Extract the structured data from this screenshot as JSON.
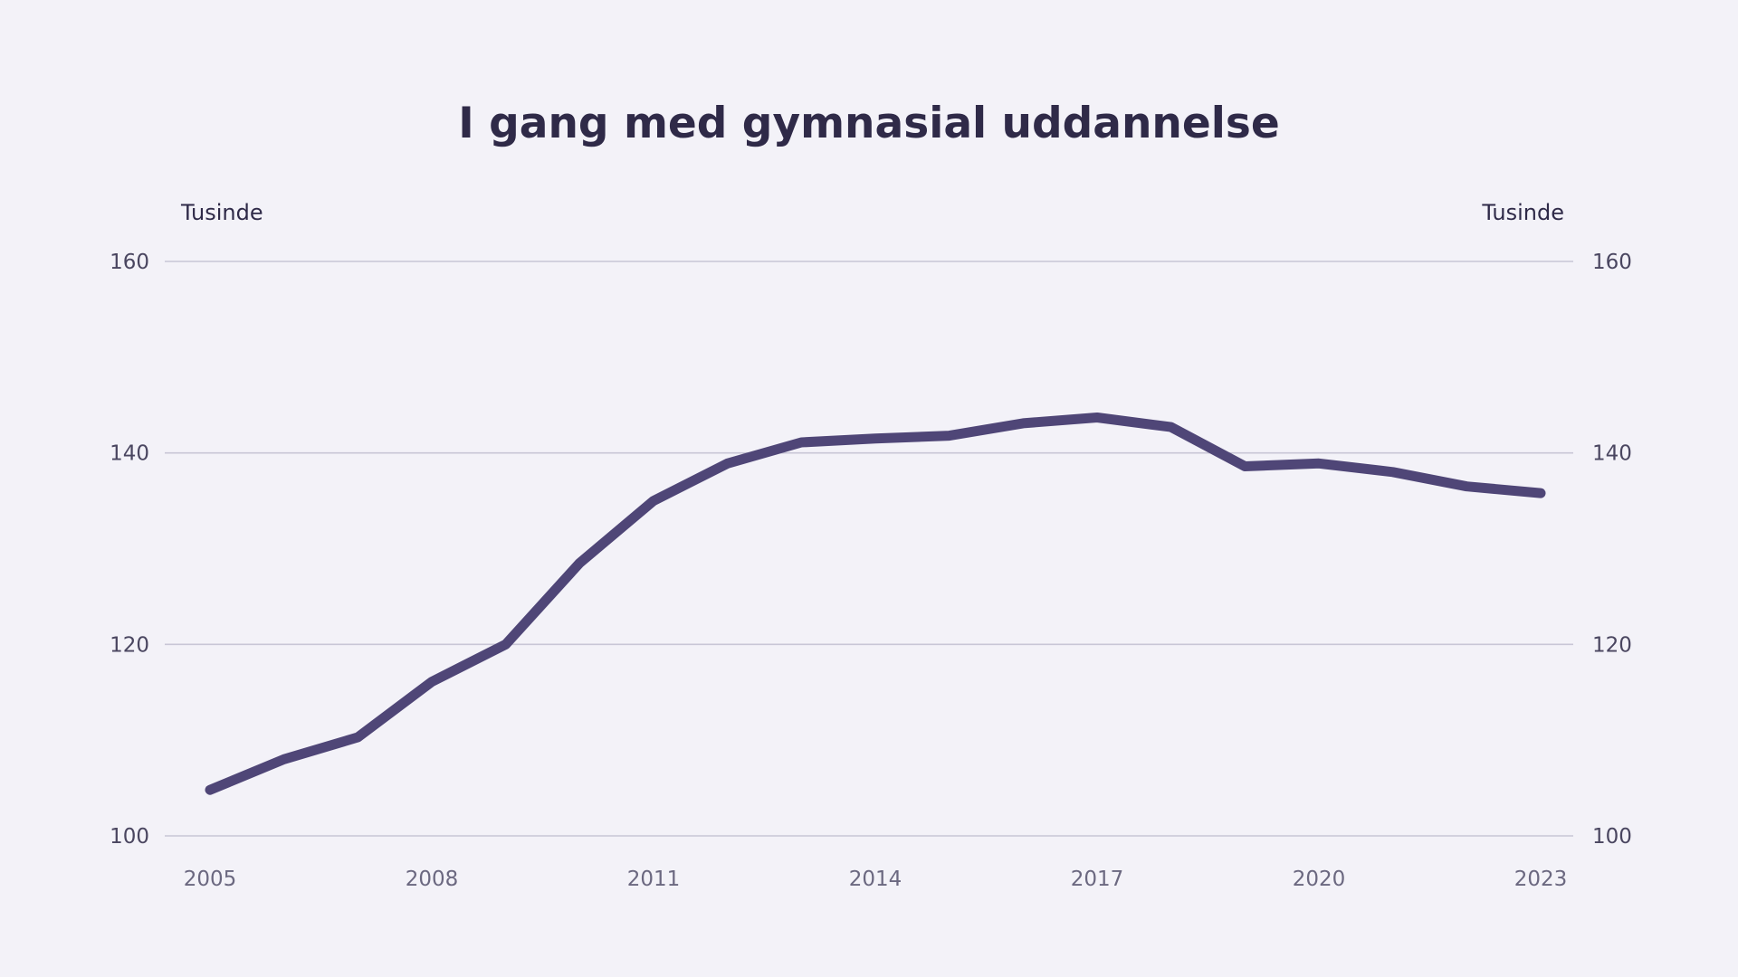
{
  "chart_data": {
    "type": "line",
    "title": "I gang med gymnasial uddannelse",
    "ylabel_left": "Tusinde",
    "ylabel_right": "Tusinde",
    "xlabel": "",
    "ylim": [
      100,
      160
    ],
    "yticks": [
      100,
      120,
      140,
      160
    ],
    "xlim": [
      2005,
      2023
    ],
    "xticks": [
      2005,
      2008,
      2011,
      2014,
      2017,
      2020,
      2023
    ],
    "grid": true,
    "legend": "none",
    "colors": {
      "background": "#f3f2f8",
      "series": "#4f4677",
      "grid": "#c8c6d6",
      "text": "#2f2a48"
    },
    "x": [
      2005,
      2006,
      2007,
      2008,
      2009,
      2010,
      2011,
      2012,
      2013,
      2014,
      2015,
      2016,
      2017,
      2018,
      2019,
      2020,
      2021,
      2022,
      2023
    ],
    "series": [
      {
        "values": [
          104.8,
          108.0,
          110.3,
          116.1,
          120.0,
          128.5,
          135.0,
          138.9,
          141.1,
          141.5,
          141.8,
          143.1,
          143.7,
          142.7,
          138.6,
          138.9,
          138.0,
          136.5,
          135.8
        ]
      }
    ]
  }
}
